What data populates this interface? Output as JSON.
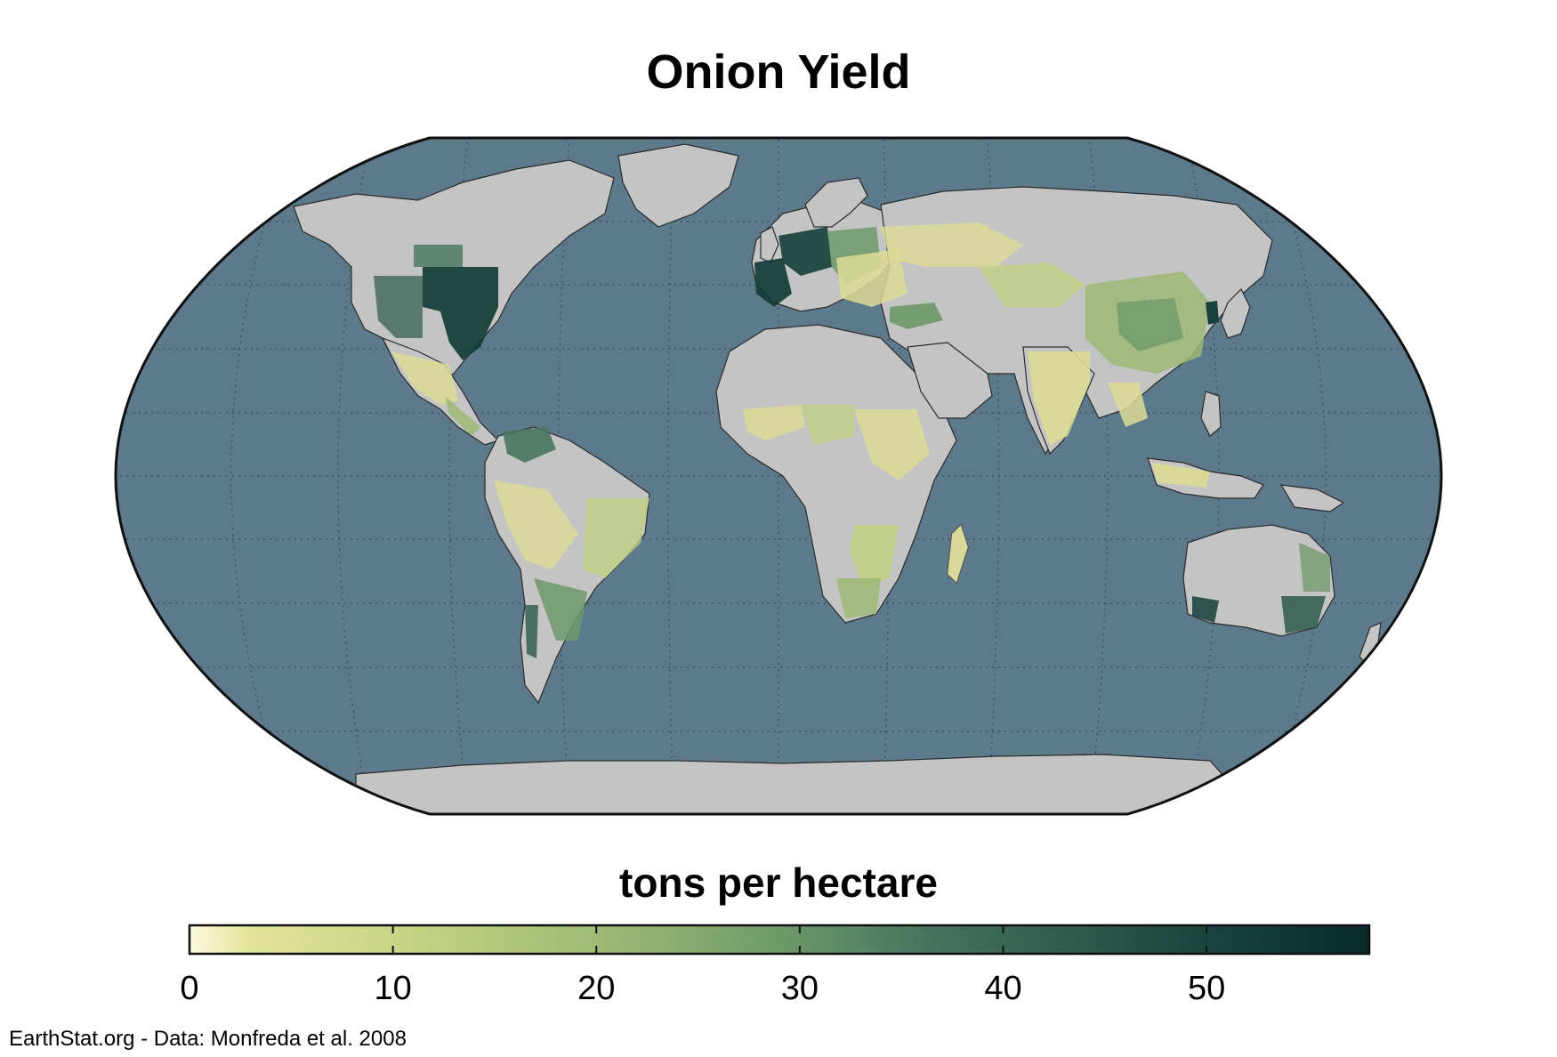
{
  "title": "Onion Yield",
  "legend": {
    "title": "tons per hectare",
    "ticks": [
      "0",
      "10",
      "20",
      "30",
      "40",
      "50"
    ],
    "min": 0,
    "max": 58,
    "tick_values": [
      0,
      10,
      20,
      30,
      40,
      50
    ],
    "colors": [
      "#fbf9e0",
      "#e3e49a",
      "#c2d182",
      "#9dba74",
      "#6f9a6a",
      "#47755f",
      "#2e5a4c",
      "#17403a",
      "#0a2a27"
    ]
  },
  "map": {
    "projection": "Robinson",
    "ocean_color": "#5d7a8c",
    "land_color": "#c4c4c4",
    "graticule": true
  },
  "credit": "EarthStat.org - Data: Monfreda et al. 2008"
}
